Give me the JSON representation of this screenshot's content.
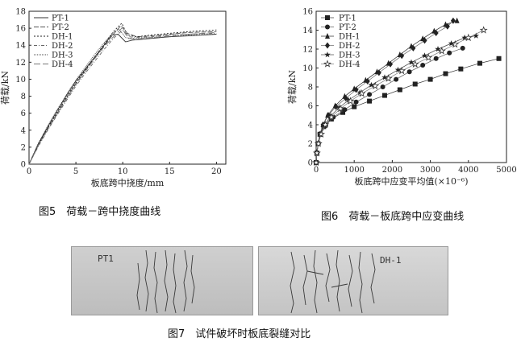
{
  "figure5": {
    "caption": "图5　荷载－跨中挠度曲线",
    "chart_data": {
      "type": "line",
      "xlabel": "板底跨中挠度/mm",
      "ylabel": "荷载/kN",
      "xlim": [
        0,
        21
      ],
      "ylim": [
        0,
        18
      ],
      "xticks": [
        "0",
        "5",
        "10",
        "15",
        "20"
      ],
      "yticks": [
        "0",
        "2",
        "4",
        "6",
        "8",
        "10",
        "12",
        "14",
        "16",
        "18"
      ],
      "legend_position": "top-left",
      "series": [
        {
          "name": "PT-1",
          "x": [
            0,
            1,
            2,
            3,
            4,
            5,
            6,
            7,
            8,
            8.8,
            9.5,
            10.3,
            11,
            13,
            15,
            17,
            20
          ],
          "y": [
            0,
            2.4,
            4.4,
            6.3,
            8.1,
            9.8,
            11.2,
            12.6,
            14.0,
            15.2,
            15.3,
            14.4,
            14.6,
            14.8,
            15.0,
            15.1,
            15.3
          ]
        },
        {
          "name": "PT-2",
          "x": [
            0,
            1,
            2,
            3,
            4,
            5,
            6,
            7,
            8,
            9,
            9.8,
            10.5,
            11.5,
            13,
            15,
            17,
            20
          ],
          "y": [
            0,
            2.2,
            4.2,
            6.0,
            7.8,
            9.5,
            11.0,
            12.5,
            13.9,
            15.3,
            16.3,
            15.4,
            15.0,
            15.1,
            15.3,
            15.5,
            15.6
          ]
        },
        {
          "name": "DH-1",
          "x": [
            0,
            1,
            2,
            3,
            4,
            5,
            6,
            7,
            8,
            9,
            9.9,
            10.5,
            11.5,
            13,
            15,
            17,
            20
          ],
          "y": [
            0,
            2.3,
            4.3,
            6.1,
            7.9,
            9.6,
            11.1,
            12.6,
            14.1,
            15.6,
            16.6,
            15.2,
            15.0,
            15.2,
            15.4,
            15.6,
            15.8
          ]
        },
        {
          "name": "DH-2",
          "x": [
            0,
            1,
            2,
            3,
            4,
            5,
            6,
            7,
            8,
            9,
            10,
            10.7,
            11.5,
            13,
            15,
            17,
            20
          ],
          "y": [
            0,
            2.1,
            4.0,
            5.8,
            7.5,
            9.2,
            10.7,
            12.1,
            13.5,
            14.8,
            15.8,
            15.0,
            14.9,
            15.0,
            15.2,
            15.3,
            15.4
          ]
        },
        {
          "name": "DH-3",
          "x": [
            0,
            1,
            2,
            3,
            4,
            5,
            6,
            7,
            8,
            9,
            9.6,
            10.3,
            11,
            13,
            15,
            17,
            20
          ],
          "y": [
            0,
            2.5,
            4.5,
            6.4,
            8.2,
            9.9,
            11.4,
            12.9,
            14.3,
            15.5,
            15.9,
            14.9,
            14.8,
            14.9,
            15.0,
            15.2,
            15.3
          ]
        },
        {
          "name": "DH-4",
          "x": [
            0,
            1,
            2,
            3,
            4,
            5,
            6,
            7,
            8,
            9,
            9.9,
            10.6,
            11.5,
            13,
            15,
            17,
            20
          ],
          "y": [
            0,
            2.2,
            4.1,
            5.9,
            7.7,
            9.4,
            10.9,
            12.4,
            13.8,
            15.0,
            16.0,
            14.8,
            14.7,
            14.9,
            15.1,
            15.3,
            15.5
          ]
        }
      ]
    }
  },
  "figure6": {
    "caption": "图6　荷载－板底跨中应变曲线",
    "chart_data": {
      "type": "scatter",
      "xlabel": "板底跨中应变平均值(×10⁻⁶)",
      "ylabel": "荷载/kN",
      "xlim": [
        0,
        5000
      ],
      "ylim": [
        0,
        16
      ],
      "xticks": [
        "0",
        "1000",
        "2000",
        "3000",
        "4000",
        "5000"
      ],
      "yticks": [
        "0",
        "2",
        "4",
        "6",
        "8",
        "10",
        "12",
        "14",
        "16"
      ],
      "legend_position": "top-left",
      "series": [
        {
          "name": "PT-1",
          "marker": "square",
          "x": [
            0,
            20,
            50,
            100,
            200,
            400,
            700,
            1000,
            1400,
            1800,
            2200,
            2600,
            3000,
            3400,
            3800,
            4300,
            4800
          ],
          "y": [
            0,
            1,
            2,
            3,
            3.8,
            4.6,
            5.3,
            5.9,
            6.5,
            7.1,
            7.7,
            8.3,
            8.8,
            9.4,
            9.9,
            10.5,
            11
          ]
        },
        {
          "name": "PT-2",
          "marker": "circle",
          "x": [
            0,
            20,
            60,
            120,
            250,
            450,
            750,
            1050,
            1400,
            1750,
            2100,
            2450,
            2800,
            3150,
            3500,
            3850
          ],
          "y": [
            0,
            1,
            2,
            3,
            3.9,
            4.8,
            5.6,
            6.4,
            7.2,
            8.0,
            8.8,
            9.6,
            10.3,
            11.0,
            11.6,
            12.1
          ]
        },
        {
          "name": "DH-1",
          "marker": "triangle",
          "x": [
            0,
            20,
            50,
            100,
            180,
            300,
            500,
            750,
            1000,
            1300,
            1600,
            1900,
            2200,
            2500,
            2800,
            3100,
            3400,
            3700
          ],
          "y": [
            0,
            1,
            2,
            3,
            4,
            5,
            6,
            7,
            7.8,
            8.7,
            9.6,
            10.5,
            11.4,
            12.3,
            13.1,
            13.9,
            14.6,
            15.0
          ]
        },
        {
          "name": "DH-2",
          "marker": "diamond",
          "x": [
            0,
            20,
            50,
            100,
            180,
            320,
            520,
            780,
            1050,
            1350,
            1650,
            1950,
            2250,
            2550,
            2850,
            3150,
            3450,
            3600
          ],
          "y": [
            0,
            1,
            2,
            3,
            4,
            5,
            5.9,
            6.8,
            7.7,
            8.6,
            9.5,
            10.4,
            11.3,
            12.1,
            12.9,
            13.7,
            14.4,
            15.0
          ]
        },
        {
          "name": "DH-3",
          "marker": "star",
          "x": [
            0,
            20,
            60,
            120,
            220,
            380,
            600,
            850,
            1150,
            1450,
            1800,
            2150,
            2500,
            2850,
            3200,
            3550,
            3900,
            4200
          ],
          "y": [
            0,
            1,
            2,
            3,
            4,
            4.9,
            5.8,
            6.6,
            7.4,
            8.2,
            9.0,
            9.8,
            10.6,
            11.3,
            12.0,
            12.6,
            13.2,
            13.4
          ]
        },
        {
          "name": "DH-4",
          "marker": "hollow-star",
          "x": [
            0,
            20,
            60,
            130,
            240,
            400,
            640,
            900,
            1200,
            1550,
            1900,
            2250,
            2600,
            2950,
            3300,
            3650,
            4000,
            4400
          ],
          "y": [
            0,
            1,
            2,
            3,
            4,
            4.8,
            5.7,
            6.5,
            7.3,
            8.1,
            8.9,
            9.7,
            10.4,
            11.1,
            11.8,
            12.5,
            13.2,
            14.0
          ]
        }
      ]
    }
  },
  "figure7": {
    "caption": "图7　试件破坏时板底裂缝对比",
    "left_label": "PT1",
    "right_label": "DH-1"
  }
}
